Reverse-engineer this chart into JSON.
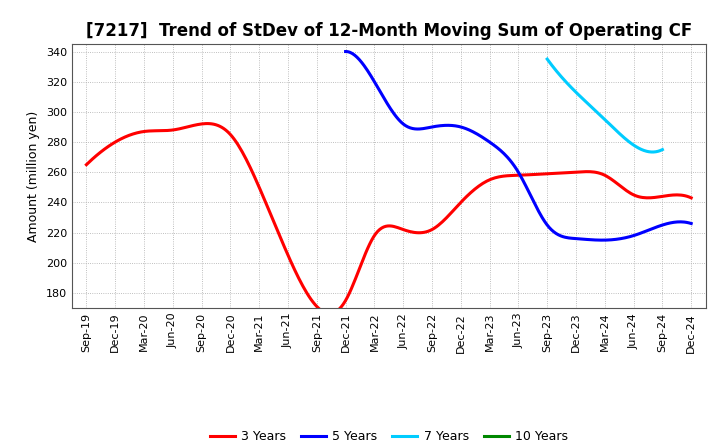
{
  "title": "[7217]  Trend of StDev of 12-Month Moving Sum of Operating CF",
  "ylabel": "Amount (million yen)",
  "ylim": [
    170,
    345
  ],
  "yticks": [
    180,
    200,
    220,
    240,
    260,
    280,
    300,
    320,
    340
  ],
  "background_color": "#ffffff",
  "grid_color": "#aaaaaa",
  "series": {
    "3 Years": {
      "color": "#ff0000",
      "x": [
        "Sep-19",
        "Dec-19",
        "Mar-20",
        "Jun-20",
        "Sep-20",
        "Dec-20",
        "Mar-21",
        "Jun-21",
        "Sep-21",
        "Dec-21",
        "Mar-22",
        "Jun-22",
        "Sep-22",
        "Dec-22",
        "Mar-23",
        "Jun-23",
        "Sep-23",
        "Dec-23",
        "Mar-24",
        "Jun-24",
        "Sep-24",
        "Dec-24"
      ],
      "y": [
        265,
        280,
        287,
        288,
        292,
        285,
        250,
        205,
        171,
        175,
        218,
        222,
        222,
        240,
        255,
        258,
        259,
        260,
        258,
        245,
        244,
        243
      ]
    },
    "5 Years": {
      "color": "#0000ff",
      "x": [
        "Dec-21",
        "Mar-22",
        "Jun-22",
        "Sep-22",
        "Dec-22",
        "Mar-23",
        "Jun-23",
        "Sep-23",
        "Dec-23",
        "Mar-24",
        "Jun-24",
        "Sep-24",
        "Dec-24"
      ],
      "y": [
        340,
        320,
        292,
        290,
        290,
        280,
        260,
        225,
        216,
        215,
        218,
        225,
        226
      ]
    },
    "7 Years": {
      "color": "#00ccff",
      "x": [
        "Sep-23",
        "Dec-23",
        "Mar-24",
        "Jun-24",
        "Sep-24"
      ],
      "y": [
        335,
        313,
        295,
        278,
        275
      ]
    },
    "10 Years": {
      "color": "#008800",
      "x": [],
      "y": []
    }
  },
  "xtick_labels": [
    "Sep-19",
    "Dec-19",
    "Mar-20",
    "Jun-20",
    "Sep-20",
    "Dec-20",
    "Mar-21",
    "Jun-21",
    "Sep-21",
    "Dec-21",
    "Mar-22",
    "Jun-22",
    "Sep-22",
    "Dec-22",
    "Mar-23",
    "Jun-23",
    "Sep-23",
    "Dec-23",
    "Mar-24",
    "Jun-24",
    "Sep-24",
    "Dec-24"
  ],
  "legend_order": [
    "3 Years",
    "5 Years",
    "7 Years",
    "10 Years"
  ],
  "title_fontsize": 12,
  "axis_fontsize": 9,
  "tick_fontsize": 8,
  "legend_fontsize": 9,
  "linewidth": 2.2
}
